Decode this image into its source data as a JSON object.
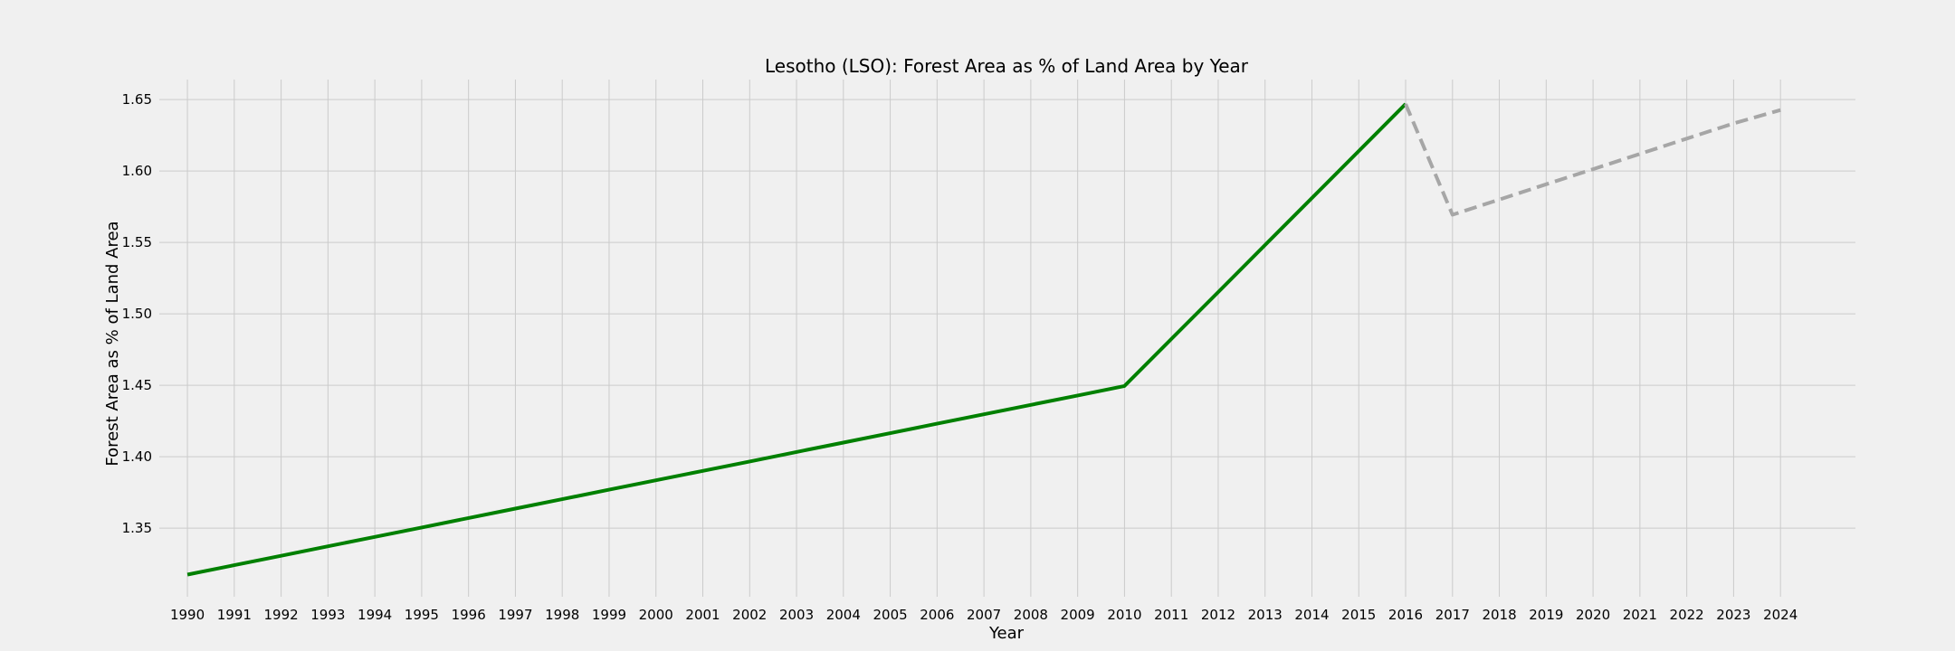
{
  "chart_data": {
    "type": "line",
    "title": "Lesotho (LSO): Forest Area as % of Land Area by Year",
    "xlabel": "Year",
    "ylabel": "Forest Area as % of Land Area",
    "x_ticks": [
      "1990",
      "1991",
      "1992",
      "1993",
      "1994",
      "1995",
      "1996",
      "1997",
      "1998",
      "1999",
      "2000",
      "2001",
      "2002",
      "2003",
      "2004",
      "2005",
      "2006",
      "2007",
      "2008",
      "2009",
      "2010",
      "2011",
      "2012",
      "2013",
      "2014",
      "2015",
      "2016",
      "2017",
      "2018",
      "2019",
      "2020",
      "2021",
      "2022",
      "2023",
      "2024"
    ],
    "y_ticks": [
      "1.35",
      "1.40",
      "1.45",
      "1.50",
      "1.55",
      "1.60",
      "1.65"
    ],
    "xlim": [
      1989.4,
      2025.6
    ],
    "ylim": [
      1.302,
      1.664
    ],
    "grid": true,
    "series": [
      {
        "style": "solid",
        "color": "#008000",
        "x": [
          1990,
          1991,
          1992,
          1993,
          1994,
          1995,
          1996,
          1997,
          1998,
          1999,
          2000,
          2001,
          2002,
          2003,
          2004,
          2005,
          2006,
          2007,
          2008,
          2009,
          2010,
          2011,
          2012,
          2013,
          2014,
          2015,
          2016
        ],
        "y": [
          1.3175,
          1.3241,
          1.3307,
          1.3373,
          1.3439,
          1.3505,
          1.3571,
          1.3637,
          1.3703,
          1.3769,
          1.3835,
          1.3901,
          1.3967,
          1.4033,
          1.4099,
          1.4165,
          1.4231,
          1.4297,
          1.4363,
          1.4429,
          1.4495,
          1.4824,
          1.5153,
          1.5482,
          1.5811,
          1.614,
          1.6469
        ]
      },
      {
        "style": "dashed",
        "color": "#a6a6a6",
        "x": [
          2016,
          2017,
          2018,
          2019,
          2020,
          2021,
          2022,
          2023,
          2024
        ],
        "y": [
          1.6469,
          1.5694,
          1.58,
          1.5907,
          1.6013,
          1.612,
          1.6227,
          1.6333,
          1.6427
        ]
      }
    ]
  }
}
